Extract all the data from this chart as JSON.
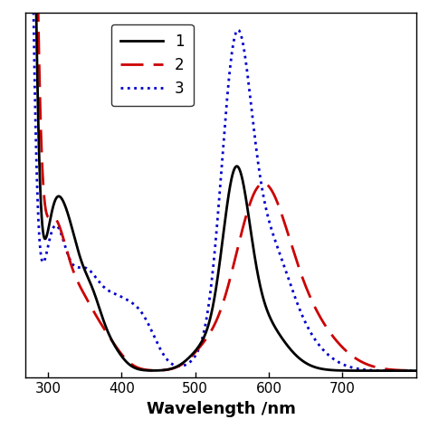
{
  "xlabel": "Wavelength /nm",
  "xlim": [
    270,
    800
  ],
  "ylim": [
    -0.02,
    1.05
  ],
  "legend_labels": [
    "1",
    "2",
    "3"
  ],
  "line1_color": "#000000",
  "line2_color": "#cc0000",
  "line3_color": "#0000cc",
  "background_color": "#ffffff",
  "xlabel_fontsize": 13,
  "legend_fontsize": 12,
  "linewidth": 2.0
}
